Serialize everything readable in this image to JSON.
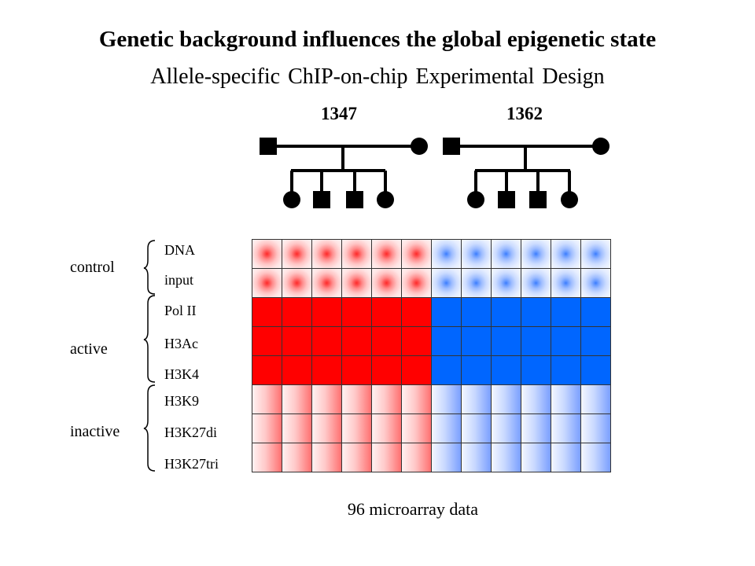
{
  "title": "Genetic background influences the global epigenetic state",
  "subtitle": "Allele-specific ChIP-on-chip Experimental Design",
  "families": [
    {
      "label": "1347"
    },
    {
      "label": "1362"
    }
  ],
  "groups": [
    {
      "label": "control",
      "rows": [
        "DNA",
        "input"
      ]
    },
    {
      "label": "active",
      "rows": [
        "Pol II",
        "H3Ac",
        "H3K4"
      ]
    },
    {
      "label": "inactive",
      "rows": [
        "H3K9",
        "H3K27di",
        "H3K27tri"
      ]
    }
  ],
  "grid": {
    "columns": 12,
    "row_styles": [
      "star",
      "star",
      "solid",
      "solid",
      "solid",
      "fade",
      "fade",
      "fade"
    ],
    "colors": {
      "family_1": "#ff0000",
      "family_2": "#0066ff"
    }
  },
  "footer": "96 microarray data"
}
